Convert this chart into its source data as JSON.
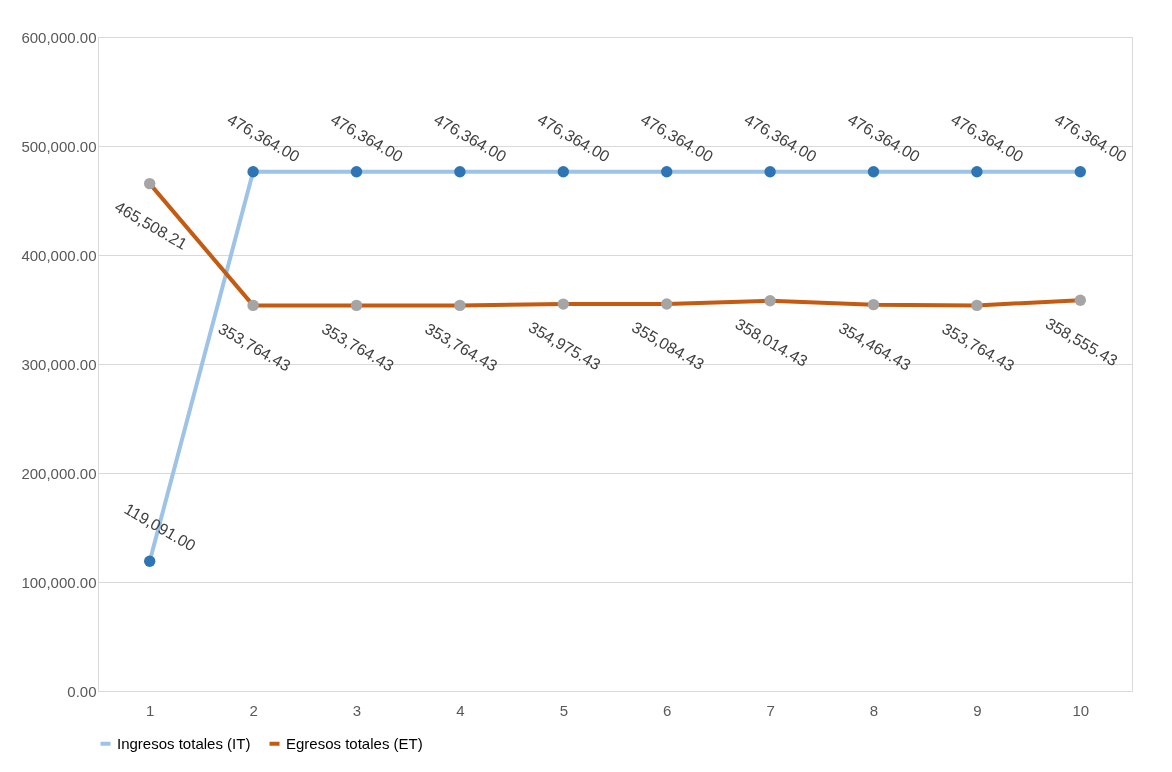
{
  "chart_data": {
    "type": "line",
    "categories": [
      "1",
      "2",
      "3",
      "4",
      "5",
      "6",
      "7",
      "8",
      "9",
      "10"
    ],
    "series": [
      {
        "name": "Ingresos totales (IT)",
        "color": "#9dc3e6",
        "colors": [
          "#2e75b6",
          "#2e75b6",
          "#2e75b6",
          "#2e75b6",
          "#2e75b6",
          "#2e75b6",
          "#2e75b6",
          "#2e75b6",
          "#2e75b6",
          "#2e75b6"
        ],
        "values": [
          119091,
          476364,
          476364,
          476364,
          476364,
          476364,
          476364,
          476364,
          476364,
          476364
        ],
        "value_labels": [
          "119,091.00",
          "476,364.00",
          "476,364.00",
          "476,364.00",
          "476,364.00",
          "476,364.00",
          "476,364.00",
          "476,364.00",
          "476,364.00",
          "476,364.00"
        ]
      },
      {
        "name": "Egresos totales (ET)",
        "color": "#c55a11",
        "colors": [
          "#a5a5a5",
          "#a5a5a5",
          "#a5a5a5",
          "#a5a5a5",
          "#a5a5a5",
          "#a5a5a5",
          "#a5a5a5",
          "#a5a5a5",
          "#a5a5a5",
          "#a5a5a5"
        ],
        "values": [
          465508.21,
          353764.43,
          353764.43,
          353764.43,
          354975.43,
          355084.43,
          358014.43,
          354464.43,
          353764.43,
          358555.43
        ],
        "value_labels": [
          "465,508.21",
          "353,764.43",
          "353,764.43",
          "353,764.43",
          "354,975.43",
          "355,084.43",
          "358,014.43",
          "354,464.43",
          "353,764.43",
          "358,555.43"
        ]
      }
    ],
    "ylim": [
      0,
      600000
    ],
    "yticks": [
      {
        "value": 0,
        "label": "0.00"
      },
      {
        "value": 100000,
        "label": "100,000.00"
      },
      {
        "value": 200000,
        "label": "200,000.00"
      },
      {
        "value": 300000,
        "label": "300,000.00"
      },
      {
        "value": 400000,
        "label": "400,000.00"
      },
      {
        "value": 500000,
        "label": "500,000.00"
      },
      {
        "value": 600000,
        "label": "600,000.00"
      }
    ],
    "grid": "y",
    "legend": "bottom",
    "marker": "circle",
    "line_style": "solid"
  }
}
